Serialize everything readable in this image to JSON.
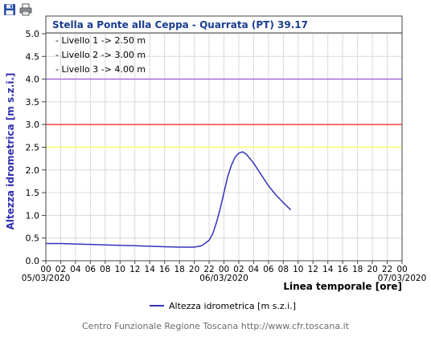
{
  "toolbar": {
    "save_icon": "floppy-disk-icon",
    "print_icon": "printer-icon"
  },
  "colors": {
    "title": "#1a3e8f",
    "series": "#3333bb",
    "ylabel": "#2f2fb0",
    "level1": "#ffff66",
    "level2": "#ff3333",
    "level3": "#a060d8"
  },
  "chart_data": {
    "type": "line",
    "title": "Stella a Ponte alla Ceppa - Quarrata (PT) 39.17",
    "ylabel": "Altezza idrometrica [m s.z.i.]",
    "xlabel": "Linea temporale [ore]",
    "ylim": [
      0,
      5
    ],
    "yticks": [
      "0.0",
      "0.5",
      "1.0",
      "1.5",
      "2.0",
      "2.5",
      "3.0",
      "3.5",
      "4.0",
      "4.5",
      "5.0"
    ],
    "xticks": [
      "00",
      "02",
      "04",
      "06",
      "08",
      "10",
      "12",
      "14",
      "16",
      "18",
      "20",
      "22",
      "00",
      "02",
      "04",
      "06",
      "08",
      "10",
      "12",
      "14",
      "16",
      "18",
      "20",
      "22",
      "00"
    ],
    "date_ticks": [
      {
        "at": 0,
        "label": "05/03/2020"
      },
      {
        "at": 12,
        "label": "06/03/2020"
      },
      {
        "at": 24,
        "label": "07/03/2020"
      }
    ],
    "grid": true,
    "legend_placement": "bottom",
    "thresholds": [
      {
        "label": "- Livello 1 -> 2.50 m",
        "value": 2.5,
        "color_key": "level1"
      },
      {
        "label": "- Livello 2 -> 3.00 m",
        "value": 3.0,
        "color_key": "level2"
      },
      {
        "label": "- Livello 3 -> 4.00 m",
        "value": 4.0,
        "color_key": "level3"
      }
    ],
    "series": [
      {
        "name": "Altezza idrometrica [m s.z.i.]",
        "x": [
          "05/03/2020 00:00",
          "05/03/2020 02:00",
          "05/03/2020 04:00",
          "05/03/2020 06:00",
          "05/03/2020 08:00",
          "05/03/2020 10:00",
          "05/03/2020 12:00",
          "05/03/2020 14:00",
          "05/03/2020 16:00",
          "05/03/2020 18:00",
          "05/03/2020 20:00",
          "05/03/2020 21:00",
          "05/03/2020 22:00",
          "05/03/2020 22:30",
          "05/03/2020 23:00",
          "05/03/2020 23:30",
          "06/03/2020 00:00",
          "06/03/2020 00:30",
          "06/03/2020 01:00",
          "06/03/2020 01:30",
          "06/03/2020 02:00",
          "06/03/2020 02:30",
          "06/03/2020 03:00",
          "06/03/2020 04:00",
          "06/03/2020 05:00",
          "06/03/2020 06:00",
          "06/03/2020 07:00",
          "06/03/2020 08:00",
          "06/03/2020 09:00"
        ],
        "y": [
          0.38,
          0.38,
          0.37,
          0.36,
          0.35,
          0.34,
          0.33,
          0.32,
          0.31,
          0.3,
          0.3,
          0.33,
          0.45,
          0.6,
          0.85,
          1.15,
          1.5,
          1.85,
          2.1,
          2.28,
          2.37,
          2.4,
          2.35,
          2.15,
          1.9,
          1.65,
          1.45,
          1.28,
          1.12
        ]
      }
    ]
  },
  "footer_text": "Centro Funzionale Regione Toscana http://www.cfr.toscana.it"
}
